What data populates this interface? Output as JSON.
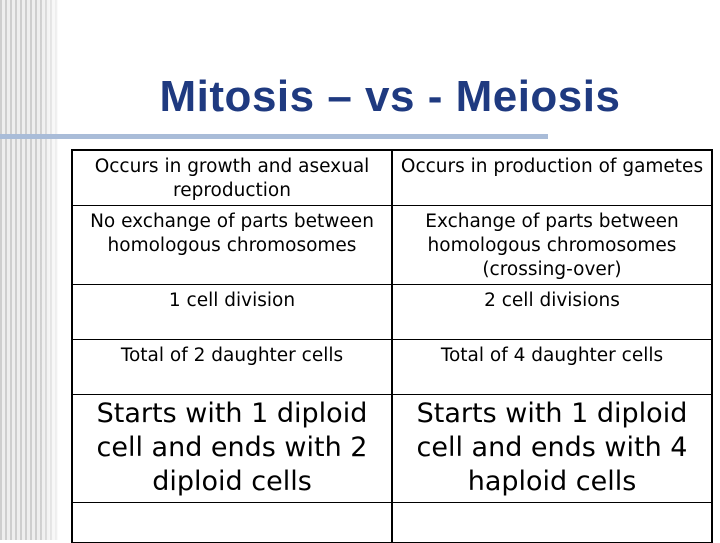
{
  "slide": {
    "title": "Mitosis – vs - Meiosis"
  },
  "table": {
    "rows": [
      {
        "mitosis": "Occurs in growth and asexual reproduction",
        "meiosis": "Occurs in production of gametes"
      },
      {
        "mitosis": "No exchange of parts between homologous chromosomes",
        "meiosis": "Exchange of parts between homologous chromosomes (crossing-over)"
      },
      {
        "mitosis": "1 cell division",
        "meiosis": "2 cell divisions"
      },
      {
        "mitosis": "Total of 2 daughter cells",
        "meiosis": "Total of 4 daughter cells"
      },
      {
        "mitosis": "Starts with 1 diploid cell and ends with 2 diploid cells",
        "meiosis": "Starts with 1 diploid cell and ends with 4 haploid cells"
      },
      {
        "mitosis": "",
        "meiosis": ""
      }
    ]
  },
  "colors": {
    "title": "#1f3a80",
    "title_rule": "#a9bcd8",
    "border": "#000000"
  }
}
